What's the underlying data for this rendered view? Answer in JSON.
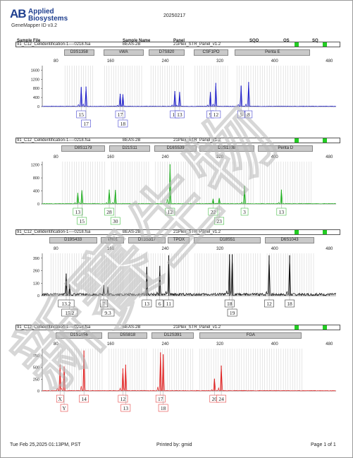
{
  "header": {
    "logo_mark": "AB",
    "logo_text": "Applied Biosystems",
    "product": "GeneMapper ID v3.2",
    "date": "20250217"
  },
  "columns": {
    "sample_file": "Sample File",
    "sample_name": "Sample Name",
    "panel": "Panel",
    "sqo": "SQO",
    "os": "OS",
    "sq": "SQ"
  },
  "x_ticks": [
    80,
    160,
    240,
    320,
    400,
    480
  ],
  "panels": [
    {
      "sample_file": "91_C12_Cellidentification-1----0218.fsa",
      "sample_name": "BEAS-2B",
      "panel": "21Plex_STR_Panel_v1.2",
      "color": "#2020c8",
      "ymax": 1000,
      "yticks": [
        0,
        400,
        800,
        1200,
        1600
      ],
      "yaxis_max": 1800,
      "markers": [
        {
          "name": "D3S1358",
          "start": 92,
          "end": 136
        },
        {
          "name": "vWA",
          "start": 150,
          "end": 208
        },
        {
          "name": "D7S820",
          "start": 216,
          "end": 268
        },
        {
          "name": "CSF1PO",
          "start": 282,
          "end": 332
        },
        {
          "name": "Penta E",
          "start": 342,
          "end": 452
        }
      ],
      "peaks": [
        {
          "x": 117,
          "h": 860,
          "label": "15",
          "row": 0
        },
        {
          "x": 124,
          "h": 880,
          "label": "17",
          "row": 1
        },
        {
          "x": 174,
          "h": 560,
          "label": "17",
          "row": 0
        },
        {
          "x": 178,
          "h": 540,
          "label": "18",
          "row": 1
        },
        {
          "x": 254,
          "h": 680,
          "label": "10",
          "row": 0
        },
        {
          "x": 261,
          "h": 640,
          "label": "13",
          "row": 0
        },
        {
          "x": 306,
          "h": 640,
          "label": "9",
          "row": 0
        },
        {
          "x": 314,
          "h": 1040,
          "label": "12",
          "row": 0
        },
        {
          "x": 351,
          "h": 920,
          "label": "5",
          "row": 0
        },
        {
          "x": 362,
          "h": 1080,
          "label": "8",
          "row": 0
        }
      ]
    },
    {
      "sample_file": "91_C12_Cellidentification-1----0218.fsa",
      "sample_name": "BEAS-2B",
      "panel": "21Plex_STR_Panel_v1.2",
      "color": "#20b020",
      "yticks": [
        0,
        400,
        800,
        1200
      ],
      "yaxis_max": 1300,
      "markers": [
        {
          "name": "D8S1179",
          "start": 88,
          "end": 152
        },
        {
          "name": "D21S11",
          "start": 158,
          "end": 218
        },
        {
          "name": "D16S539",
          "start": 224,
          "end": 286
        },
        {
          "name": "D2S1338",
          "start": 290,
          "end": 370
        },
        {
          "name": "Penta D",
          "start": 376,
          "end": 456
        }
      ],
      "peaks": [
        {
          "x": 112,
          "h": 340,
          "label": "13",
          "row": 0
        },
        {
          "x": 118,
          "h": 420,
          "label": "15",
          "row": 1
        },
        {
          "x": 158,
          "h": 440,
          "label": "28",
          "row": 0
        },
        {
          "x": 167,
          "h": 430,
          "label": "30",
          "row": 1
        },
        {
          "x": 247,
          "h": 1220,
          "label": "12",
          "row": 0
        },
        {
          "x": 310,
          "h": 160,
          "label": "22",
          "row": 0
        },
        {
          "x": 319,
          "h": 180,
          "label": "23",
          "row": 1
        },
        {
          "x": 356,
          "h": 560,
          "label": "3",
          "row": 0
        },
        {
          "x": 410,
          "h": 440,
          "label": "13",
          "row": 0
        }
      ]
    },
    {
      "sample_file": "91_C12_Cellidentification-1----0218.fsa",
      "sample_name": "BEAS-2B",
      "panel": "21Plex_STR_Panel_v1.2",
      "color": "#111111",
      "yticks": [
        0,
        130,
        260,
        390
      ],
      "yaxis_max": 440,
      "markers": [
        {
          "name": "D19S433",
          "start": 70,
          "end": 140
        },
        {
          "name": "TH01",
          "start": 146,
          "end": 180
        },
        {
          "name": "D13S317",
          "start": 186,
          "end": 240
        },
        {
          "name": "TPOX",
          "start": 244,
          "end": 276
        },
        {
          "name": "D18S51",
          "start": 282,
          "end": 380
        },
        {
          "name": "D6S1043",
          "start": 386,
          "end": 458
        }
      ],
      "peaks": [
        {
          "x": 95,
          "h": 230,
          "label": "13.2",
          "row": 0
        },
        {
          "x": 100,
          "h": 120,
          "label": "15.2",
          "row": 1
        },
        {
          "x": 150,
          "h": 110,
          "label": "7",
          "row": 0
        },
        {
          "x": 156,
          "h": 90,
          "label": "9.3",
          "row": 1
        },
        {
          "x": 213,
          "h": 300,
          "label": "13",
          "row": 0
        },
        {
          "x": 232,
          "h": 310,
          "label": "6",
          "row": 0
        },
        {
          "x": 245,
          "h": 420,
          "label": "11",
          "row": 0
        },
        {
          "x": 334,
          "h": 430,
          "label": "18",
          "row": 0
        },
        {
          "x": 338,
          "h": 430,
          "label": "19",
          "row": 1
        },
        {
          "x": 392,
          "h": 420,
          "label": "12",
          "row": 0
        },
        {
          "x": 422,
          "h": 420,
          "label": "18",
          "row": 0
        }
      ]
    },
    {
      "sample_file": "91_C12_Cellidentification-1----0218.fsa",
      "sample_name": "BEAS-2B",
      "panel": "21Plex_STR_Panel_v1.2",
      "color": "#e02020",
      "yticks": [
        0,
        250,
        500,
        750
      ],
      "yaxis_max": 900,
      "markers": [
        {
          "name": "D1S1656",
          "start": 80,
          "end": 148
        },
        {
          "name": "D5S818",
          "start": 156,
          "end": 214
        },
        {
          "name": "D12S391",
          "start": 220,
          "end": 282
        },
        {
          "name": "FGA",
          "start": 290,
          "end": 440
        }
      ],
      "peaks": [
        {
          "x": 86,
          "h": 560,
          "label": "X",
          "row": 0
        },
        {
          "x": 92,
          "h": 520,
          "label": "Y",
          "row": 1
        },
        {
          "x": 121,
          "h": 860,
          "label": "14",
          "row": 0
        },
        {
          "x": 178,
          "h": 480,
          "label": "12",
          "row": 0
        },
        {
          "x": 182,
          "h": 560,
          "label": "13",
          "row": 1
        },
        {
          "x": 233,
          "h": 820,
          "label": "17",
          "row": 0
        },
        {
          "x": 237,
          "h": 780,
          "label": "18",
          "row": 1
        },
        {
          "x": 312,
          "h": 260,
          "label": "20",
          "row": 0
        },
        {
          "x": 322,
          "h": 540,
          "label": "24",
          "row": 0
        }
      ]
    }
  ],
  "footer": {
    "timestamp": "Tue Feb 25,2025 01:13PM, PST",
    "printed_by": "Printed by: gmid",
    "page": "Page 1 of 1"
  },
  "watermark_text": "新賽生物"
}
